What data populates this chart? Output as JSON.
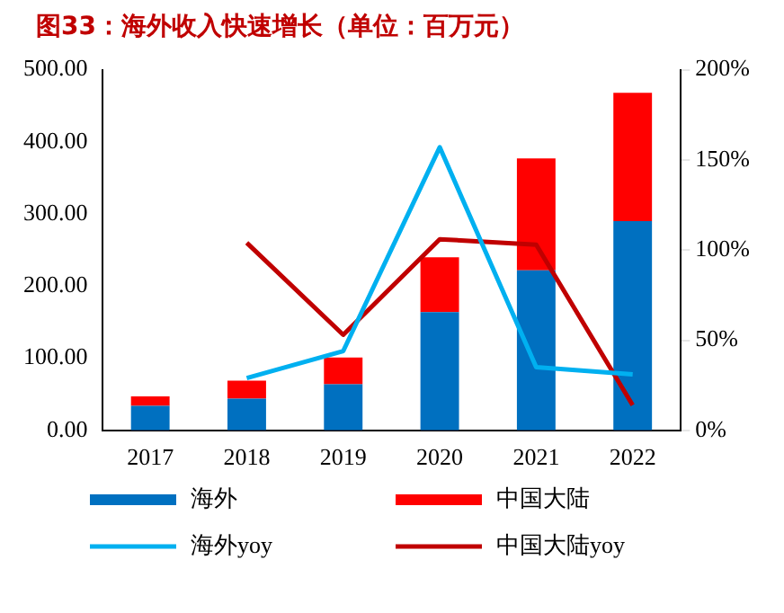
{
  "chart_data": {
    "type": "bar",
    "title": "图33：海外收入快速增长（单位：百万元）",
    "categories": [
      "2017",
      "2018",
      "2019",
      "2020",
      "2021",
      "2022"
    ],
    "stacked": true,
    "series": [
      {
        "name": "海外",
        "color": "#0070c0",
        "values": [
          34,
          44,
          64,
          164,
          222,
          290
        ]
      },
      {
        "name": "中国大陆",
        "color": "#ff0000",
        "values": [
          13,
          25,
          37,
          76,
          155,
          178
        ]
      },
      {
        "name": "海外yoy",
        "type": "line",
        "axis": "y2",
        "color": "#00b0f0",
        "values": [
          null,
          29,
          44,
          157,
          35,
          31
        ]
      },
      {
        "name": "中国大陆yoy",
        "type": "line",
        "axis": "y2",
        "color": "#c00000",
        "values": [
          null,
          104,
          53,
          106,
          103,
          14
        ]
      }
    ],
    "ylim": [
      0,
      500
    ],
    "yticks": [
      {
        "value": 0,
        "label": "0.00"
      },
      {
        "value": 100,
        "label": "100.00"
      },
      {
        "value": 200,
        "label": "200.00"
      },
      {
        "value": 300,
        "label": "300.00"
      },
      {
        "value": 400,
        "label": "400.00"
      },
      {
        "value": 500,
        "label": "500.00"
      }
    ],
    "y2lim": [
      0,
      200
    ],
    "y2ticks": [
      {
        "value": 0,
        "label": "0%"
      },
      {
        "value": 50,
        "label": "50%"
      },
      {
        "value": 100,
        "label": "100%"
      },
      {
        "value": 150,
        "label": "150%"
      },
      {
        "value": 200,
        "label": "200%"
      }
    ],
    "grid": false,
    "legend": "bottom",
    "marker": "none"
  }
}
